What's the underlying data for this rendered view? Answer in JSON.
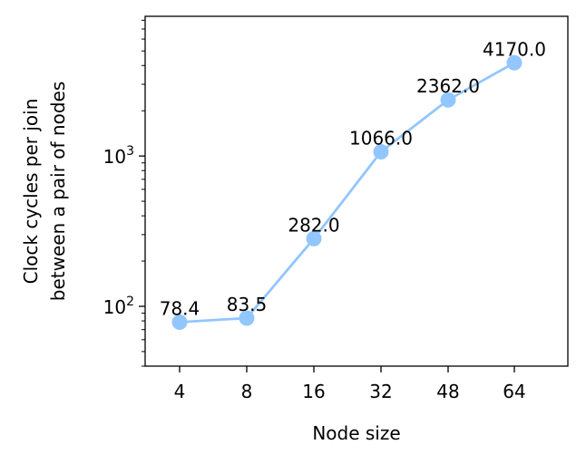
{
  "chart_data": {
    "type": "line",
    "title": "",
    "xlabel": "Node size",
    "ylabel_lines": [
      "Clock cycles per join",
      "between a pair of nodes"
    ],
    "categories": [
      "4",
      "8",
      "16",
      "32",
      "48",
      "64"
    ],
    "series": [
      {
        "values": [
          78.4,
          83.5,
          282.0,
          1066.0,
          2362.0,
          4170.0
        ],
        "labels": [
          "78.4",
          "83.5",
          "282.0",
          "1066.0",
          "2362.0",
          "4170.0"
        ],
        "color": "#92c6ff"
      }
    ],
    "y_scale": "log",
    "ylim": [
      40,
      8500
    ],
    "y_major_ticks": [
      {
        "value": 100,
        "base": "10",
        "exp": "2"
      },
      {
        "value": 1000,
        "base": "10",
        "exp": "3"
      }
    ],
    "grid": false,
    "legend": "none"
  }
}
